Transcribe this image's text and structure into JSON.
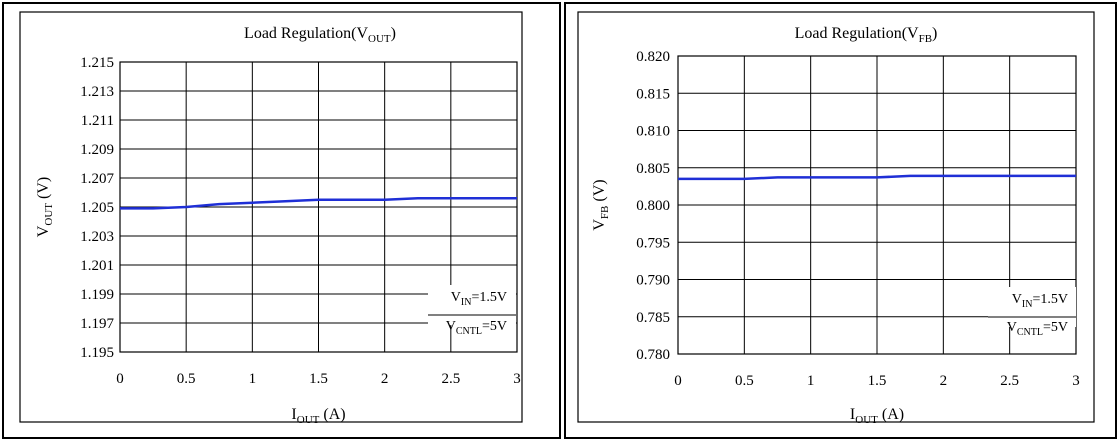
{
  "chart_data": [
    {
      "type": "line",
      "title": "Load Regulation(V",
      "title_sub": "OUT",
      "title_end": ")",
      "xlabel": "I",
      "xlabel_sub": "OUT",
      "xlabel_end": " (A)",
      "ylabel": "V",
      "ylabel_sub": "OUT",
      "ylabel_end": " (V)",
      "xlim": [
        0,
        3
      ],
      "ylim": [
        1.195,
        1.215
      ],
      "x_ticks": [
        "0",
        "0.5",
        "1",
        "1.5",
        "2",
        "2.5",
        "3"
      ],
      "y_ticks": [
        "1.215",
        "1.213",
        "1.211",
        "1.209",
        "1.207",
        "1.205",
        "1.203",
        "1.201",
        "1.199",
        "1.197",
        "1.195"
      ],
      "grid": true,
      "line_color": "#1f2fd6",
      "annotations": [
        {
          "text": "V",
          "sub": "IN",
          "tail": "=1.5V",
          "color": "#e8202a"
        },
        {
          "text": "V",
          "sub": "CNTL",
          "tail": "=5V",
          "color": "#e8202a"
        }
      ],
      "series": [
        {
          "x": [
            0,
            0.25,
            0.5,
            0.75,
            1.0,
            1.25,
            1.5,
            1.75,
            2.0,
            2.25,
            2.5,
            2.75,
            3.0
          ],
          "y": [
            1.2049,
            1.2049,
            1.205,
            1.2052,
            1.2053,
            1.2054,
            1.2055,
            1.2055,
            1.2055,
            1.2056,
            1.2056,
            1.2056,
            1.2056
          ]
        }
      ]
    },
    {
      "type": "line",
      "title": "Load Regulation(V",
      "title_sub": "FB",
      "title_end": ")",
      "xlabel": "I",
      "xlabel_sub": "OUT",
      "xlabel_end": " (A)",
      "ylabel": "V",
      "ylabel_sub": "FB",
      "ylabel_end": " (V)",
      "xlim": [
        0,
        3
      ],
      "ylim": [
        0.78,
        0.82
      ],
      "x_ticks": [
        "0",
        "0.5",
        "1",
        "1.5",
        "2",
        "2.5",
        "3"
      ],
      "y_ticks": [
        "0.820",
        "0.815",
        "0.810",
        "0.805",
        "0.800",
        "0.795",
        "0.790",
        "0.785",
        "0.780"
      ],
      "grid": true,
      "line_color": "#1f2fd6",
      "annotations": [
        {
          "text": "V",
          "sub": "IN",
          "tail": "=1.5V",
          "color": "#e8202a"
        },
        {
          "text": "V",
          "sub": "CNTL",
          "tail": "=5V",
          "color": "#e8202a"
        }
      ],
      "series": [
        {
          "x": [
            0,
            0.25,
            0.5,
            0.75,
            1.0,
            1.25,
            1.5,
            1.75,
            2.0,
            2.25,
            2.5,
            2.75,
            3.0
          ],
          "y": [
            0.8035,
            0.8035,
            0.8035,
            0.8037,
            0.8037,
            0.8037,
            0.8037,
            0.8039,
            0.8039,
            0.8039,
            0.8039,
            0.8039,
            0.8039
          ]
        }
      ]
    }
  ]
}
